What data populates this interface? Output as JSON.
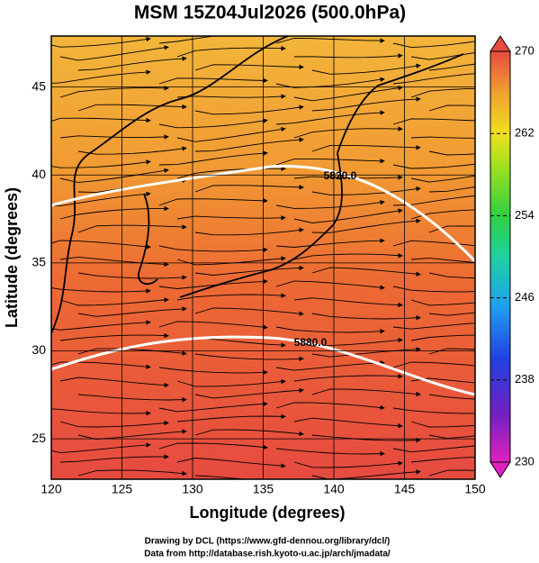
{
  "title": "MSM 15Z04Jul2026 (500.0hPa)",
  "x_label": "Longitude (degrees)",
  "y_label": "Latitude  (degrees)",
  "xlim": [
    120,
    150
  ],
  "ylim": [
    22.7,
    47.9
  ],
  "xticks": [
    120,
    125,
    130,
    135,
    140,
    145,
    150
  ],
  "yticks": [
    25,
    30,
    35,
    40,
    45
  ],
  "colorbar": {
    "lim": [
      230,
      270
    ],
    "ticks": [
      230,
      238,
      246,
      254,
      262,
      270
    ]
  },
  "contour_labels": [
    "5820.0",
    "5880.0"
  ],
  "footer": [
    "Drawing by DCL (https://www.gfd-dennou.org/library/dcl/)",
    "Data from http://database.rish.kyoto-u.ac.jp/arch/jmadata/"
  ]
}
